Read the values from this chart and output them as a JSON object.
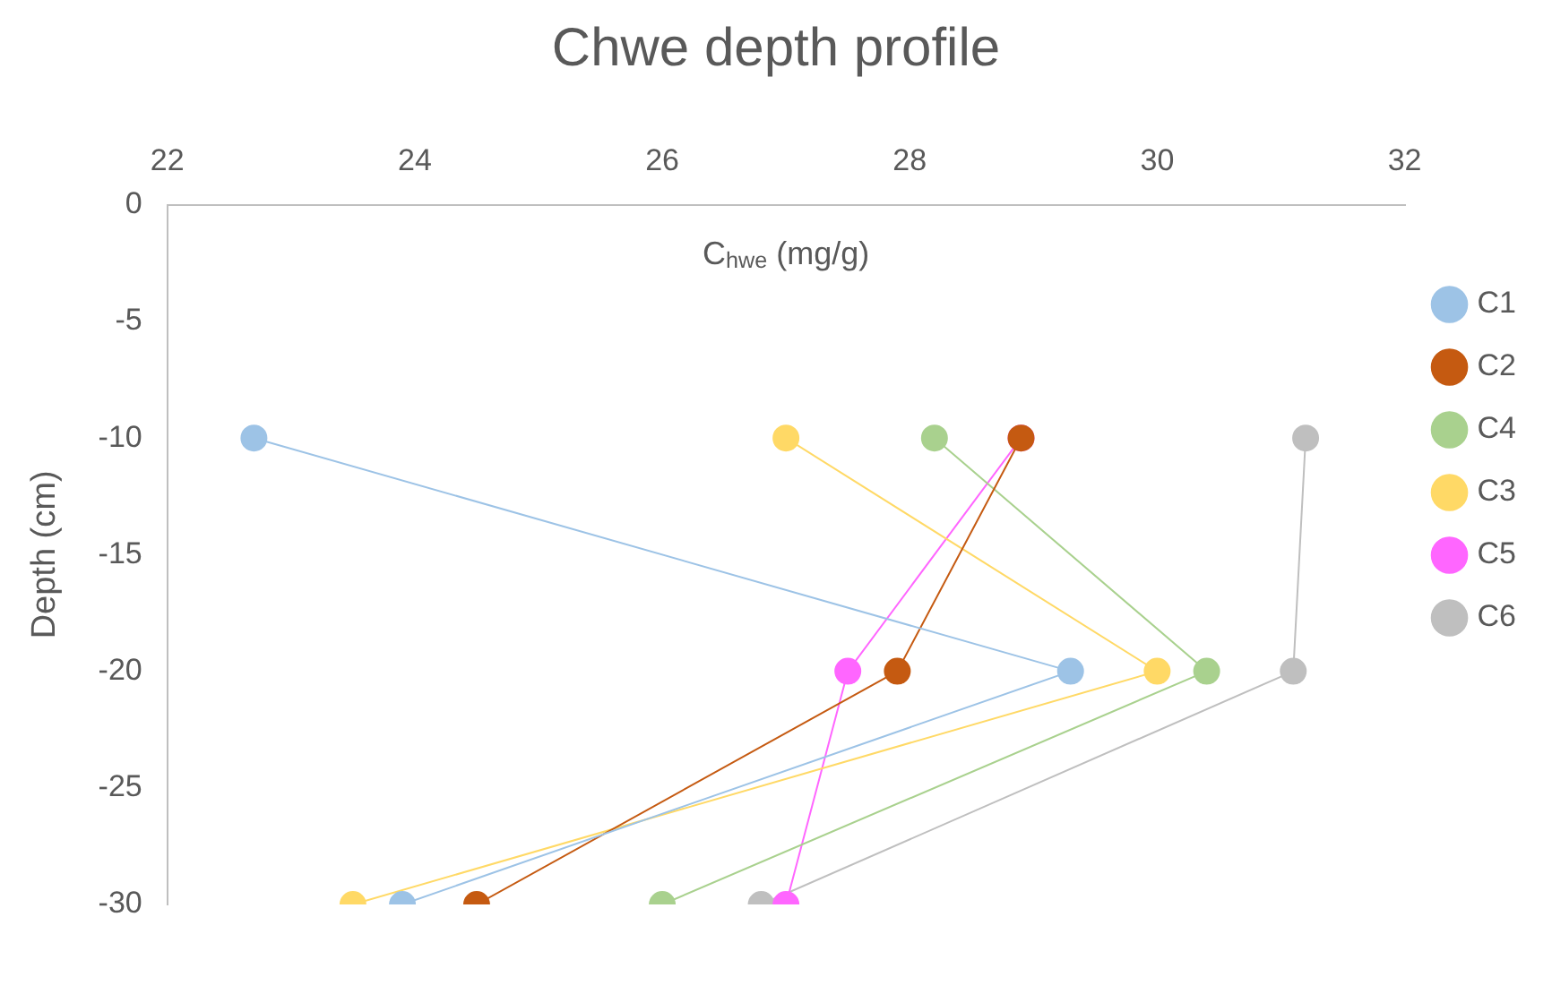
{
  "chart_data": {
    "type": "line",
    "title": "Chwe depth profile",
    "xlabel": "C$_{hwe}$ (mg/g)",
    "ylabel": "Depth (cm)",
    "xlim": [
      22,
      32
    ],
    "xticks": [
      22,
      24,
      26,
      28,
      30,
      32
    ],
    "ylim": [
      -30,
      0
    ],
    "yticks": [
      0,
      -5,
      -10,
      -15,
      -20,
      -25,
      -30
    ],
    "grid": false,
    "legend": "right",
    "marker": "circle",
    "line_style": "solid",
    "series": [
      {
        "name": "C1",
        "color": "#9dc3e6",
        "x": [
          22.7,
          29.3,
          23.9
        ],
        "values": [
          -10,
          -20,
          -30
        ]
      },
      {
        "name": "C2",
        "color": "#c55a11",
        "x": [
          28.9,
          27.9,
          24.5
        ],
        "values": [
          -10,
          -20,
          -30
        ]
      },
      {
        "name": "C4",
        "color": "#a9d18e",
        "x": [
          28.2,
          30.4,
          26.0
        ],
        "values": [
          -10,
          -20,
          -30
        ]
      },
      {
        "name": "C3",
        "color": "#ffd966",
        "x": [
          27.0,
          30.0,
          23.5
        ],
        "values": [
          -10,
          -20,
          -30
        ]
      },
      {
        "name": "C5",
        "color": "#ff66ff",
        "x": [
          28.9,
          27.5,
          27.0
        ],
        "values": [
          -10,
          -20,
          -30
        ]
      },
      {
        "name": "C6",
        "color": "#bfbfbf",
        "x": [
          31.2,
          31.1,
          26.8
        ],
        "values": [
          -10,
          -20,
          -30
        ]
      }
    ]
  }
}
